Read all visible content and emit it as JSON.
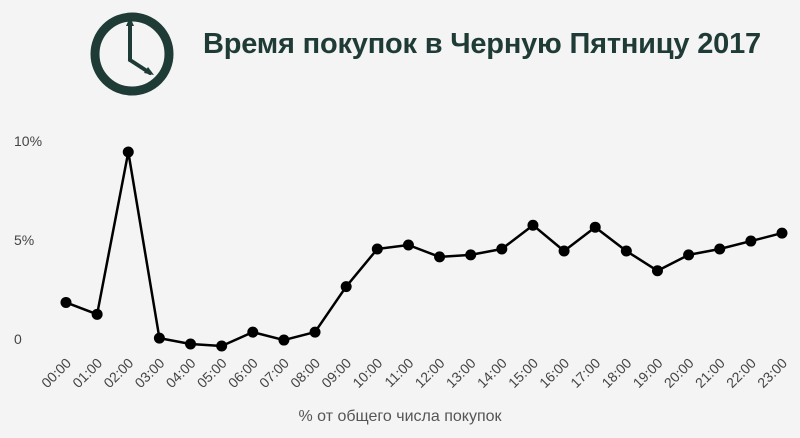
{
  "title": "Время покупок в Черную Пятницу 2017",
  "icon": "clock-icon",
  "colors": {
    "title": "#1f3b36",
    "icon": "#1f3b36",
    "line": "#000000",
    "text": "#444444"
  },
  "chart_data": {
    "type": "line",
    "title": "Время покупок в Черную Пятницу 2017",
    "xlabel": "% от общего числа покупок",
    "ylabel": "",
    "categories": [
      "00:00",
      "01:00",
      "02:00",
      "03:00",
      "04:00",
      "05:00",
      "06:00",
      "07:00",
      "08:00",
      "09:00",
      "10:00",
      "11:00",
      "12:00",
      "13:00",
      "14:00",
      "15:00",
      "16:00",
      "17:00",
      "18:00",
      "19:00",
      "20:00",
      "21:00",
      "22:00",
      "23:00"
    ],
    "values": [
      2.2,
      1.6,
      9.8,
      0.4,
      0.1,
      0.0,
      0.7,
      0.3,
      0.7,
      3.0,
      4.9,
      5.1,
      4.5,
      4.6,
      4.9,
      6.1,
      4.8,
      6.0,
      4.8,
      3.8,
      4.6,
      4.9,
      5.3,
      5.7
    ],
    "yticks": [
      0,
      5,
      10
    ],
    "ytick_labels": [
      "0",
      "5%",
      "10%"
    ],
    "ylim": [
      0,
      10
    ],
    "grid": false,
    "legend": "none",
    "markers": true
  }
}
